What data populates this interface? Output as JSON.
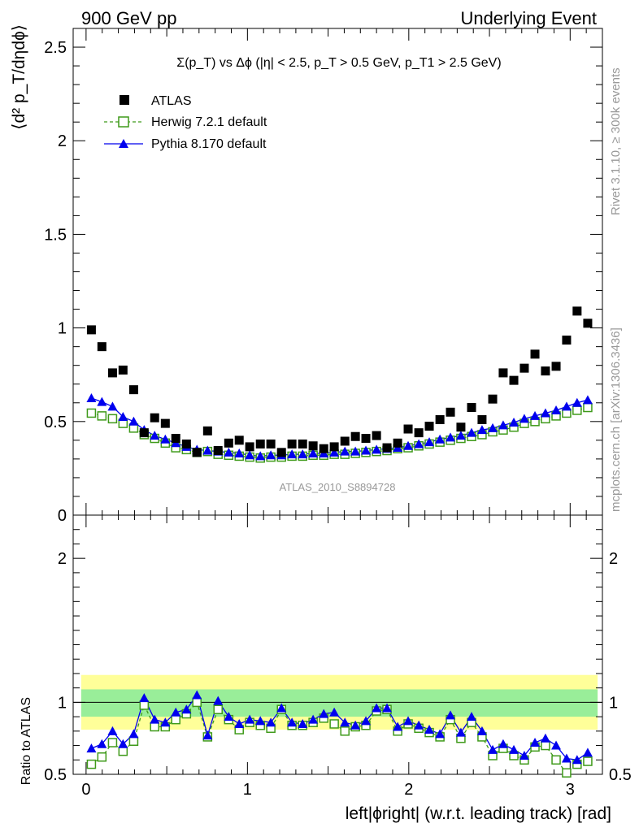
{
  "header": {
    "left": "900 GeV pp",
    "right": "Underlying Event",
    "side_top": "Rivet 3.1.10, ≥ 300k events",
    "side_bottom": "mcplots.cern.ch [arXiv:1306.3436]",
    "watermark": "ATLAS_2010_S8894728"
  },
  "colors": {
    "data": "#000000",
    "herwig": "#3f9a1a",
    "pythia": "#0000ee",
    "band_outer": "#ffff99",
    "band_inner": "#99ee99"
  },
  "chart_data": [
    {
      "type": "scatter",
      "title": "Σ(p_T) vs Δϕ (|η| < 2.5, p_T > 0.5 GeV, p_T1 > 2.5 GeV)",
      "ylabel": "⟨d² p_T/dηdϕ⟩",
      "xlabel": "left|ϕright| (w.r.t. leading track) [rad]",
      "xlim": [
        -0.08,
        3.2
      ],
      "ylim": [
        0,
        2.6
      ],
      "yticks": [
        "0",
        "0.5",
        "1",
        "1.5",
        "2",
        "2.5"
      ],
      "legend": "top-left",
      "x": [
        0.033,
        0.098,
        0.164,
        0.229,
        0.295,
        0.36,
        0.425,
        0.491,
        0.556,
        0.622,
        0.687,
        0.753,
        0.818,
        0.884,
        0.949,
        1.014,
        1.08,
        1.145,
        1.211,
        1.276,
        1.342,
        1.407,
        1.473,
        1.538,
        1.604,
        1.669,
        1.734,
        1.8,
        1.865,
        1.931,
        1.996,
        2.062,
        2.127,
        2.193,
        2.258,
        2.323,
        2.389,
        2.454,
        2.52,
        2.585,
        2.651,
        2.716,
        2.782,
        2.847,
        2.913,
        2.978,
        3.043,
        3.109
      ],
      "series": [
        {
          "name": "ATLAS",
          "values": [
            0.99,
            0.9,
            0.76,
            0.775,
            0.67,
            0.44,
            0.52,
            0.49,
            0.41,
            0.38,
            0.335,
            0.45,
            0.345,
            0.385,
            0.4,
            0.365,
            0.38,
            0.38,
            0.335,
            0.38,
            0.38,
            0.37,
            0.355,
            0.365,
            0.395,
            0.42,
            0.41,
            0.425,
            0.36,
            0.385,
            0.46,
            0.44,
            0.475,
            0.51,
            0.55,
            0.47,
            0.575,
            0.51,
            0.62,
            0.76,
            0.72,
            0.785,
            0.86,
            0.77,
            0.795,
            0.935,
            1.09,
            1.025
          ]
        },
        {
          "name": "Herwig 7.2.1 default",
          "values": [
            0.545,
            0.53,
            0.515,
            0.49,
            0.465,
            0.43,
            0.41,
            0.385,
            0.36,
            0.35,
            0.335,
            0.34,
            0.325,
            0.32,
            0.315,
            0.31,
            0.305,
            0.31,
            0.31,
            0.315,
            0.315,
            0.32,
            0.32,
            0.325,
            0.325,
            0.33,
            0.335,
            0.34,
            0.345,
            0.355,
            0.36,
            0.37,
            0.38,
            0.39,
            0.4,
            0.41,
            0.42,
            0.43,
            0.445,
            0.455,
            0.47,
            0.49,
            0.5,
            0.515,
            0.53,
            0.545,
            0.56,
            0.575
          ]
        },
        {
          "name": "Pythia 8.170 default",
          "values": [
            0.625,
            0.605,
            0.58,
            0.525,
            0.5,
            0.455,
            0.425,
            0.405,
            0.385,
            0.365,
            0.35,
            0.345,
            0.34,
            0.335,
            0.33,
            0.32,
            0.315,
            0.32,
            0.32,
            0.325,
            0.325,
            0.33,
            0.33,
            0.335,
            0.34,
            0.34,
            0.345,
            0.35,
            0.355,
            0.36,
            0.37,
            0.38,
            0.39,
            0.405,
            0.415,
            0.425,
            0.44,
            0.455,
            0.465,
            0.48,
            0.495,
            0.515,
            0.53,
            0.545,
            0.56,
            0.58,
            0.6,
            0.615
          ]
        }
      ]
    },
    {
      "type": "line",
      "ylabel": "Ratio to ATLAS",
      "ylim": [
        0.5,
        2.3
      ],
      "yticks": [
        "0.5",
        "1",
        "2"
      ],
      "xticks": [
        "0",
        "1",
        "2",
        "3"
      ],
      "band_outer": [
        0.81,
        1.19
      ],
      "band_inner": [
        0.9,
        1.09
      ],
      "series": [
        {
          "name": "Herwig 7.2.1 default",
          "values": [
            0.57,
            0.62,
            0.72,
            0.66,
            0.73,
            0.98,
            0.83,
            0.83,
            0.88,
            0.92,
            1.0,
            0.76,
            0.95,
            0.88,
            0.81,
            0.86,
            0.84,
            0.82,
            0.95,
            0.84,
            0.84,
            0.86,
            0.89,
            0.85,
            0.8,
            0.83,
            0.84,
            0.94,
            0.95,
            0.8,
            0.85,
            0.82,
            0.79,
            0.76,
            0.88,
            0.75,
            0.86,
            0.76,
            0.63,
            0.68,
            0.63,
            0.6,
            0.69,
            0.7,
            0.6,
            0.51,
            0.57,
            0.59
          ]
        },
        {
          "name": "Pythia 8.170 default",
          "values": [
            0.68,
            0.71,
            0.8,
            0.71,
            0.78,
            1.03,
            0.88,
            0.86,
            0.93,
            0.95,
            1.05,
            0.77,
            1.01,
            0.9,
            0.85,
            0.88,
            0.87,
            0.86,
            0.96,
            0.86,
            0.85,
            0.88,
            0.92,
            0.93,
            0.86,
            0.84,
            0.87,
            0.96,
            0.96,
            0.83,
            0.87,
            0.84,
            0.81,
            0.78,
            0.91,
            0.79,
            0.9,
            0.8,
            0.67,
            0.71,
            0.67,
            0.63,
            0.72,
            0.75,
            0.7,
            0.61,
            0.6,
            0.65
          ]
        }
      ]
    }
  ]
}
